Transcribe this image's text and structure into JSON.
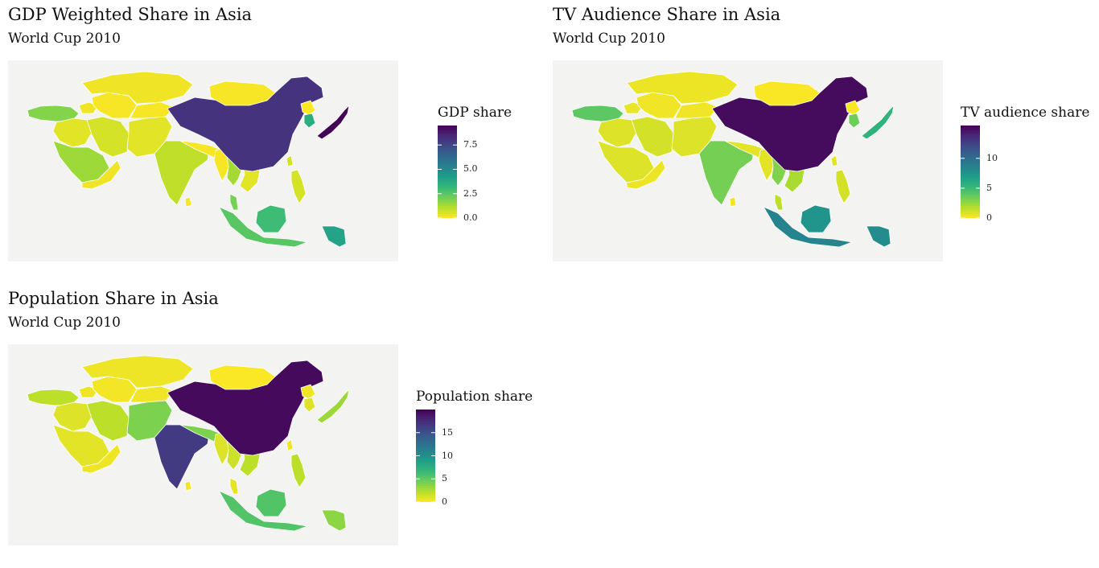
{
  "panels": [
    {
      "id": "gdp",
      "title": "GDP Weighted Share in Asia",
      "subtitle": "World Cup 2010",
      "legend_title": "GDP share",
      "legend_max": 9.5,
      "ticks": [
        {
          "value": 7.5,
          "label": "7.5"
        },
        {
          "value": 5.0,
          "label": "5.0"
        },
        {
          "value": 2.5,
          "label": "2.5"
        },
        {
          "value": 0.0,
          "label": "0.0"
        }
      ],
      "regions": {
        "turkey": 1.8,
        "caucasus": 0.2,
        "middle_east_north": 0.4,
        "saudi_arabia": 1.4,
        "yemen_oman": 0.2,
        "iran": 0.6,
        "central_asia_west": 0.1,
        "kazakhstan": 0.2,
        "central_asia_east": 0.1,
        "afghanistan_pakistan": 0.4,
        "india": 0.9,
        "sri_lanka": 0.1,
        "nepal_bangladesh": 0.1,
        "myanmar": 0.1,
        "thailand_laos": 1.3,
        "cambodia_vietnam": 0.4,
        "malaysia": 2.0,
        "indonesia": 2.5,
        "borneo": 3.0,
        "philippines": 0.6,
        "new_guinea": 4.0,
        "china": 8.1,
        "mongolia": 0.1,
        "north_korea": 0.0,
        "south_korea": 3.6,
        "japan": 9.4,
        "taiwan": 0.6
      }
    },
    {
      "id": "tv",
      "title": "TV Audience Share in Asia",
      "subtitle": "World Cup 2010",
      "legend_title": "TV audience share",
      "legend_max": 15.5,
      "ticks": [
        {
          "value": 10,
          "label": "10"
        },
        {
          "value": 5,
          "label": "5"
        },
        {
          "value": 0,
          "label": "0"
        }
      ],
      "regions": {
        "turkey": 4.0,
        "caucasus": 0.5,
        "middle_east_north": 0.8,
        "saudi_arabia": 0.8,
        "yemen_oman": 0.4,
        "iran": 1.0,
        "central_asia_west": 0.3,
        "kazakhstan": 0.4,
        "central_asia_east": 0.3,
        "afghanistan_pakistan": 0.8,
        "india": 3.3,
        "sri_lanka": 0.3,
        "nepal_bangladesh": 0.6,
        "myanmar": 0.6,
        "thailand_laos": 3.0,
        "cambodia_vietnam": 2.0,
        "malaysia": 1.5,
        "indonesia": 8.5,
        "borneo": 7.5,
        "philippines": 1.0,
        "new_guinea": 8.0,
        "china": 15.0,
        "mongolia": 0.1,
        "north_korea": 0.1,
        "south_korea": 3.5,
        "japan": 5.5,
        "taiwan": 0.6
      }
    },
    {
      "id": "population",
      "title": "Population Share in Asia",
      "subtitle": "World Cup 2010",
      "legend_title": "Population share",
      "legend_max": 20.0,
      "ticks": [
        {
          "value": 15,
          "label": "15"
        },
        {
          "value": 10,
          "label": "10"
        },
        {
          "value": 5,
          "label": "5"
        },
        {
          "value": 0,
          "label": "0"
        }
      ],
      "regions": {
        "turkey": 2.0,
        "caucasus": 0.5,
        "middle_east_north": 1.0,
        "saudi_arabia": 0.8,
        "yemen_oman": 0.5,
        "iran": 2.0,
        "central_asia_west": 0.3,
        "kazakhstan": 0.5,
        "central_asia_east": 0.4,
        "afghanistan_pakistan": 4.0,
        "india": 16.5,
        "sri_lanka": 0.4,
        "nepal_bangladesh": 4.0,
        "myanmar": 1.0,
        "thailand_laos": 1.5,
        "cambodia_vietnam": 2.0,
        "malaysia": 0.7,
        "indonesia": 5.5,
        "borneo": 5.5,
        "philippines": 2.0,
        "new_guinea": 3.5,
        "china": 19.5,
        "mongolia": 0.1,
        "north_korea": 0.5,
        "south_korea": 1.0,
        "japan": 3.0,
        "taiwan": 0.4
      }
    }
  ]
}
